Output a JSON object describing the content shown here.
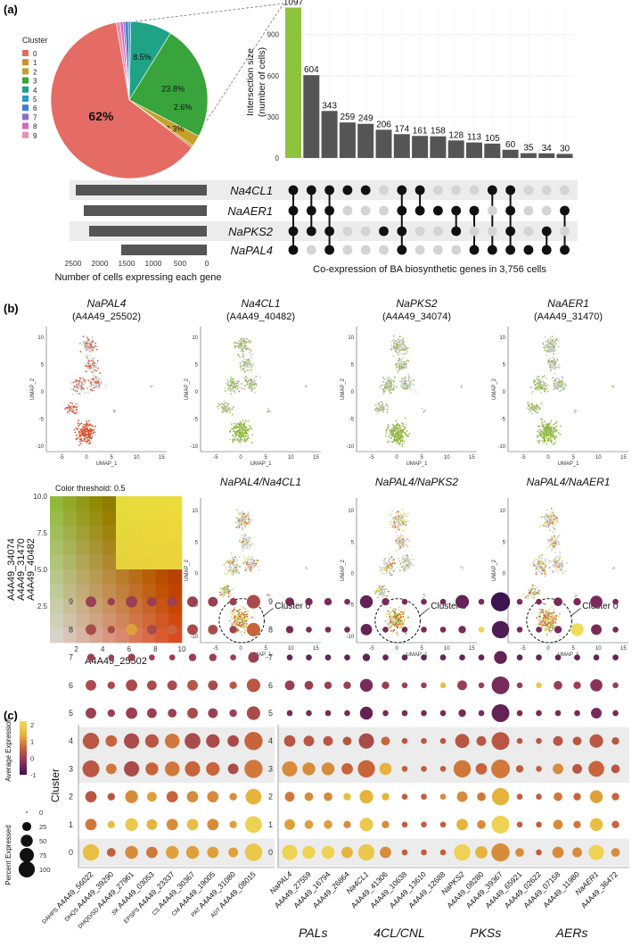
{
  "panel_labels": [
    "(a)",
    "(b)",
    "(c)"
  ],
  "colors": {
    "bar_gray": "#555555",
    "bar_green": "#8cc43c",
    "dot_active": "#111111",
    "dot_inactive": "#d4d4d4",
    "band": "#ececec",
    "umap_gray": "#c8c8c8",
    "umap_orange": "#d9532c",
    "umap_green": "#8fb83a",
    "umap_yellow": "#e8d84a"
  },
  "chart_data": [
    {
      "type": "pie",
      "legend_title": "Cluster",
      "categories": [
        "0",
        "1",
        "2",
        "3",
        "4",
        "5",
        "6",
        "7",
        "8",
        "9"
      ],
      "values": [
        62,
        0.4,
        2.3,
        23.8,
        8.5,
        0.5,
        0.7,
        0.4,
        0.6,
        0.8
      ],
      "slice_labels": [
        "62%",
        "",
        "2.3%",
        "23.8%",
        "8.5%",
        "",
        "",
        "",
        "",
        ""
      ],
      "extra_label": "2.6%",
      "colors": [
        "#e46c65",
        "#c98f2e",
        "#c4a12a",
        "#3aa43c",
        "#1fa386",
        "#2a98cc",
        "#3d7fd0",
        "#8a6ccd",
        "#d36bbd",
        "#e78fb4"
      ]
    },
    {
      "type": "bar",
      "ylabel": "Intersection size\n(number of cells)",
      "ylim": [
        0,
        1100
      ],
      "yticks": [
        0,
        300,
        600,
        900
      ],
      "values": [
        1097,
        604,
        343,
        259,
        249,
        206,
        174,
        161,
        158,
        128,
        113,
        105,
        60,
        35,
        34,
        30
      ]
    },
    {
      "type": "table",
      "genes": [
        "Na4CL1",
        "NaAER1",
        "NaPKS2",
        "NaPAL4"
      ],
      "set_sizes": [
        2450,
        2300,
        2200,
        1600
      ],
      "xlabel": "Number of cells expressing each gene",
      "xticks": [
        2500,
        2000,
        1500,
        1000,
        500,
        0
      ],
      "intersections": [
        [
          "NaPAL4",
          "NaPKS2",
          "NaAER1",
          "Na4CL1"
        ],
        [
          "NaPKS2",
          "NaAER1",
          "Na4CL1"
        ],
        [
          "NaPAL4",
          "NaPKS2",
          "NaAER1",
          "Na4CL1"
        ],
        [
          "Na4CL1"
        ],
        [
          "Na4CL1"
        ],
        [
          "NaPKS2"
        ],
        [
          "NaPAL4",
          "NaPKS2",
          "NaAER1",
          "Na4CL1"
        ],
        [
          "NaAER1",
          "Na4CL1"
        ],
        [
          "NaAER1"
        ],
        [
          "NaPKS2",
          "NaAER1"
        ],
        [
          "NaPAL4",
          "NaAER1"
        ],
        [
          "NaPAL4",
          "Na4CL1"
        ],
        [
          "NaPAL4",
          "NaPKS2",
          "NaAER1",
          "Na4CL1"
        ],
        [
          "NaPAL4"
        ],
        [
          "NaPAL4",
          "NaPKS2"
        ],
        [
          "NaPAL4",
          "NaAER1"
        ]
      ],
      "caption": "Co-expression of BA biosynthetic genes in 3,756 cells"
    },
    {
      "type": "scatter",
      "panels": [
        {
          "title": "NaPAL4",
          "subtitle": "(A4A49_25502)",
          "color": "orange"
        },
        {
          "title": "Na4CL1",
          "subtitle": "(A4A49_40482)",
          "color": "green"
        },
        {
          "title": "NaPKS2",
          "subtitle": "(A4A49_34074)",
          "color": "green"
        },
        {
          "title": "NaAER1",
          "subtitle": "(A4A49_31470)",
          "color": "green"
        },
        {
          "title": "NaPAL4/Na4CL1",
          "subtitle": "",
          "color": "blend",
          "annotation": "Cluster 0"
        },
        {
          "title": "NaPAL4/NaPKS2",
          "subtitle": "",
          "color": "blend",
          "annotation": "Cluster 0"
        },
        {
          "title": "NaPAL4/NaAER1",
          "subtitle": "",
          "color": "blend",
          "annotation": "Cluster 0"
        }
      ],
      "xlabel": "UMAP_1",
      "ylabel": "UMAP_2",
      "xticks": [
        -5,
        0,
        5,
        10,
        15
      ],
      "yticks": [
        -10,
        -5,
        0,
        5,
        10
      ],
      "xlim": [
        -8,
        16
      ],
      "ylim": [
        -11,
        12
      ]
    },
    {
      "type": "heatmap",
      "title": "Color threshold: 0.5",
      "xlabel": "A4A49_25502",
      "ylabel_lines": [
        "A4A49_34074",
        "A4A49_31470",
        "A4A49_40482"
      ],
      "xticks": [
        2,
        4,
        6,
        8,
        10
      ],
      "yticks": [
        2.5,
        5.0,
        7.5,
        10.0
      ],
      "xlim": [
        0,
        10
      ],
      "ylim": [
        0,
        10
      ]
    },
    {
      "type": "scatter",
      "subtype": "dotplot",
      "ylabel": "Cluster",
      "clusters": [
        0,
        1,
        2,
        3,
        4,
        5,
        6,
        7,
        8,
        9
      ],
      "highlight_clusters": [
        0,
        3,
        4
      ],
      "color_title": "Average Expression",
      "color_ticks": [
        -1,
        0,
        1,
        2
      ],
      "size_title": "Percent Expressed",
      "size_ticks": [
        0,
        25,
        50,
        75,
        100
      ],
      "left_genes": [
        {
          "enzyme": "DAHPS",
          "gene": "A4A49_56022"
        },
        {
          "enzyme": "DHQS",
          "gene": "A4A49_39290"
        },
        {
          "enzyme": "DHQD/SD",
          "gene": "A4A49_27961"
        },
        {
          "enzyme": "SK",
          "gene": "A4A49_03053"
        },
        {
          "enzyme": "EPSPS",
          "gene": "A4A49_23337"
        },
        {
          "enzyme": "CS",
          "gene": "A4A49_30367"
        },
        {
          "enzyme": "CM",
          "gene": "A4A49_19005"
        },
        {
          "enzyme": "PAT",
          "gene": "A4A49_31080"
        },
        {
          "enzyme": "ADT",
          "gene": "A4A49_08015"
        }
      ],
      "right_genes": [
        {
          "gene": "NaPAL4",
          "italic": true
        },
        {
          "gene": "A4A49_27559",
          "italic": false
        },
        {
          "gene": "A4A49_16794",
          "italic": false
        },
        {
          "gene": "A4A49_26864",
          "italic": false
        },
        {
          "gene": "Na4CL1",
          "italic": true
        },
        {
          "gene": "A4A49_41306",
          "italic": false
        },
        {
          "gene": "A4A49_10638",
          "italic": false
        },
        {
          "gene": "A4A49_13610",
          "italic": false
        },
        {
          "gene": "A4A49_12688",
          "italic": false
        },
        {
          "gene": "NaPKS2",
          "italic": true
        },
        {
          "gene": "A4A49_08280",
          "italic": false
        },
        {
          "gene": "A4A49_39367",
          "italic": false
        },
        {
          "gene": "A4A49_65921",
          "italic": false
        },
        {
          "gene": "A4A49_02622",
          "italic": false
        },
        {
          "gene": "A4A49_07158",
          "italic": false
        },
        {
          "gene": "A4A49_11980",
          "italic": false
        },
        {
          "gene": "NaAER1",
          "italic": true
        },
        {
          "gene": "A4A49_36472",
          "italic": false
        }
      ],
      "groups": [
        {
          "label": "PALs",
          "start": 0,
          "end": 3
        },
        {
          "label": "4CL/CNL",
          "start": 4,
          "end": 8
        },
        {
          "label": "PKSs",
          "start": 9,
          "end": 12
        },
        {
          "label": "AERs",
          "start": 13,
          "end": 17
        }
      ],
      "left_pct": [
        [
          70,
          15,
          40,
          30,
          40,
          40,
          30,
          20,
          80
        ],
        [
          30,
          10,
          40,
          25,
          30,
          30,
          30,
          10,
          75
        ],
        [
          30,
          10,
          40,
          20,
          30,
          30,
          30,
          10,
          65
        ],
        [
          75,
          25,
          60,
          40,
          55,
          60,
          45,
          25,
          90
        ],
        [
          70,
          30,
          60,
          45,
          55,
          65,
          45,
          30,
          90
        ],
        [
          25,
          10,
          30,
          20,
          15,
          25,
          20,
          10,
          45
        ],
        [
          25,
          10,
          30,
          20,
          20,
          25,
          20,
          10,
          45
        ],
        [
          10,
          5,
          10,
          5,
          5,
          10,
          10,
          5,
          25
        ],
        [
          25,
          10,
          30,
          20,
          20,
          25,
          20,
          10,
          45
        ],
        [
          25,
          10,
          30,
          20,
          20,
          25,
          20,
          10,
          45
        ]
      ],
      "left_avg": [
        [
          1.6,
          0.5,
          1.0,
          0.8,
          1.2,
          1.2,
          1.2,
          1.2,
          1.8
        ],
        [
          0.8,
          1.6,
          1.8,
          1.4,
          1.0,
          1.6,
          1.0,
          1.2,
          2.0
        ],
        [
          0.4,
          0.4,
          1.0,
          1.2,
          0.6,
          1.0,
          1.0,
          1.0,
          1.4
        ],
        [
          0.4,
          0.8,
          0.2,
          0.6,
          0.8,
          0.6,
          0.6,
          0.2,
          0.8
        ],
        [
          0.4,
          0.6,
          0.2,
          0.4,
          0.8,
          0.2,
          0.2,
          0.2,
          0.6
        ],
        [
          0.0,
          0.0,
          0.0,
          0.0,
          0.0,
          0.2,
          0.0,
          0.0,
          0.2
        ],
        [
          0.2,
          0.2,
          0.2,
          0.2,
          0.2,
          0.4,
          0.2,
          0.4,
          0.4
        ],
        [
          0.0,
          0.0,
          0.0,
          0.0,
          0.0,
          0.0,
          0.0,
          0.0,
          0.0
        ],
        [
          0.2,
          0.2,
          1.2,
          0.2,
          0.6,
          0.2,
          0.2,
          0.0,
          0.6
        ],
        [
          0.0,
          0.0,
          0.0,
          0.0,
          0.0,
          0.0,
          0.0,
          0.0,
          0.2
        ]
      ],
      "right_pct": [
        [
          60,
          40,
          40,
          30,
          70,
          30,
          5,
          5,
          5,
          70,
          35,
          90,
          15,
          5,
          30,
          20,
          60,
          15
        ],
        [
          25,
          15,
          15,
          10,
          45,
          10,
          5,
          5,
          5,
          30,
          15,
          85,
          5,
          5,
          20,
          10,
          40,
          10
        ],
        [
          20,
          15,
          15,
          10,
          45,
          10,
          5,
          5,
          5,
          25,
          15,
          80,
          5,
          5,
          15,
          10,
          40,
          10
        ],
        [
          60,
          40,
          40,
          30,
          80,
          35,
          5,
          5,
          5,
          80,
          30,
          95,
          10,
          5,
          25,
          20,
          65,
          15
        ],
        [
          30,
          25,
          20,
          15,
          60,
          15,
          5,
          5,
          5,
          50,
          20,
          85,
          5,
          5,
          20,
          15,
          45,
          10
        ],
        [
          5,
          5,
          5,
          5,
          40,
          5,
          5,
          5,
          5,
          10,
          5,
          85,
          5,
          5,
          5,
          5,
          25,
          5
        ],
        [
          20,
          15,
          10,
          10,
          40,
          10,
          5,
          5,
          5,
          20,
          5,
          85,
          5,
          5,
          15,
          10,
          35,
          5
        ],
        [
          5,
          5,
          5,
          5,
          10,
          5,
          5,
          5,
          5,
          5,
          5,
          40,
          5,
          5,
          5,
          5,
          5,
          5
        ],
        [
          10,
          5,
          5,
          5,
          30,
          5,
          5,
          5,
          5,
          10,
          5,
          80,
          5,
          5,
          10,
          40,
          25,
          5
        ],
        [
          15,
          10,
          10,
          5,
          40,
          10,
          5,
          5,
          5,
          45,
          5,
          100,
          5,
          5,
          15,
          10,
          35,
          5
        ]
      ],
      "right_avg": [
        [
          2.0,
          2.0,
          2.0,
          1.4,
          1.8,
          1.0,
          0.5,
          0.5,
          0.5,
          2.0,
          1.4,
          1.0,
          1.0,
          0.5,
          1.0,
          1.0,
          2.0,
          1.0
        ],
        [
          1.2,
          1.2,
          1.2,
          1.0,
          1.8,
          1.0,
          0.5,
          0.5,
          0.5,
          1.4,
          1.0,
          2.0,
          0.5,
          0.5,
          1.0,
          0.8,
          1.6,
          0.6
        ],
        [
          0.8,
          1.0,
          1.0,
          1.6,
          1.4,
          1.4,
          0.5,
          0.5,
          1.0,
          1.0,
          0.8,
          1.4,
          0.5,
          0.5,
          0.8,
          0.6,
          1.2,
          0.6
        ],
        [
          1.0,
          1.0,
          1.0,
          0.6,
          0.6,
          1.4,
          0.5,
          0.5,
          0.5,
          0.8,
          0.6,
          0.8,
          0.5,
          0.5,
          1.0,
          0.4,
          0.6,
          0.4
        ],
        [
          0.4,
          0.4,
          0.4,
          0.4,
          0.2,
          0.6,
          0.4,
          0.4,
          0.4,
          0.4,
          0.4,
          0.4,
          0.4,
          0.4,
          0.4,
          0.4,
          0.4,
          0.4
        ],
        [
          -0.4,
          -0.4,
          -0.4,
          -0.4,
          -0.6,
          -0.4,
          -0.4,
          -0.4,
          -0.4,
          -0.4,
          -0.4,
          -0.6,
          -0.4,
          -0.4,
          -0.4,
          -0.4,
          -0.4,
          -0.4
        ],
        [
          0.0,
          0.0,
          0.0,
          0.0,
          -0.4,
          0.0,
          0.0,
          0.0,
          1.6,
          0.0,
          0.0,
          -0.4,
          0.0,
          1.8,
          0.0,
          0.0,
          -0.2,
          0.0
        ],
        [
          -0.6,
          -0.6,
          -0.6,
          -0.6,
          -0.6,
          -0.6,
          -0.6,
          -0.6,
          -0.6,
          -0.6,
          -0.6,
          -0.6,
          -0.6,
          -0.6,
          -0.6,
          -0.6,
          -0.6,
          -0.6
        ],
        [
          -0.4,
          -0.4,
          -0.4,
          -0.4,
          -0.6,
          -0.4,
          -0.4,
          -0.4,
          -0.4,
          -0.4,
          2.0,
          -0.8,
          -0.4,
          -0.4,
          -0.4,
          2.2,
          -0.4,
          -0.4
        ],
        [
          -0.4,
          -0.4,
          -0.4,
          -0.4,
          -0.6,
          -0.4,
          -0.4,
          -0.4,
          -0.4,
          -0.6,
          -0.4,
          -1.0,
          -0.4,
          -0.4,
          -0.4,
          -0.4,
          -0.4,
          -0.4
        ]
      ]
    }
  ]
}
